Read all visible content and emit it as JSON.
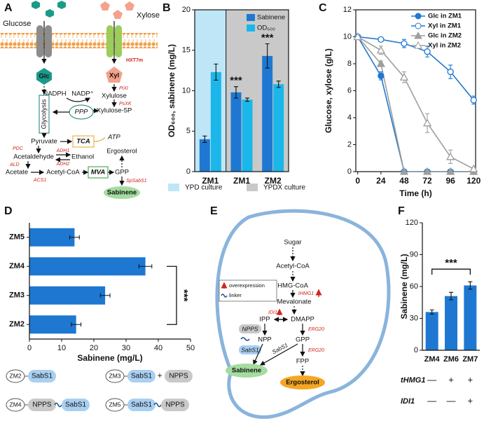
{
  "panel_labels": [
    "A",
    "B",
    "C",
    "D",
    "E",
    "F"
  ],
  "chart_data": [
    {
      "type": "bar",
      "y_label": "OD₆₀₀, sabinene (mg/L)",
      "categories": [
        "ZM1",
        "ZM1",
        "ZM2"
      ],
      "series": [
        {
          "name": "Sabinene",
          "color": "#1e78d2",
          "values": [
            4.0,
            9.8,
            14.3
          ],
          "errors": [
            0.4,
            0.7,
            1.5
          ]
        },
        {
          "name": "OD₆₀₀",
          "color": "#1bb6ea",
          "values": [
            12.3,
            8.9,
            10.8
          ],
          "errors": [
            1.0,
            0.2,
            0.4
          ]
        }
      ],
      "ylim": [
        0,
        20
      ],
      "yticks": [
        0,
        5,
        10,
        15,
        20
      ],
      "annotations": [
        {
          "text": "***",
          "category": 1
        },
        {
          "text": "***",
          "category": 2
        }
      ],
      "shading": [
        {
          "name": "YPD culture",
          "color": "#bfe6f7",
          "categories": [
            0
          ]
        },
        {
          "name": "YPDX culture",
          "color": "#c9c9c9",
          "categories": [
            1,
            2
          ]
        }
      ],
      "legend": "upper right"
    },
    {
      "type": "line",
      "x_label": "Time (h)",
      "y_label": "Glucose, xylose (g/L)",
      "x": [
        0,
        24,
        48,
        72,
        96,
        120
      ],
      "series": [
        {
          "name": "Glc in ZM1",
          "color": "#1e78d2",
          "marker": "circle",
          "filled": true,
          "values": [
            10,
            7.1,
            0,
            0,
            0,
            0
          ],
          "errors": [
            0,
            0.3,
            0,
            0,
            0,
            0
          ]
        },
        {
          "name": "Xyl in ZM1",
          "color": "#1e78d2",
          "marker": "circle",
          "filled": false,
          "values": [
            10,
            9.8,
            9.5,
            8.9,
            7.4,
            5.3
          ],
          "errors": [
            0,
            0.15,
            0.3,
            0.4,
            0.5,
            0.3
          ]
        },
        {
          "name": "Glc in ZM2",
          "color": "#9e9e9e",
          "marker": "triangle",
          "filled": true,
          "values": [
            10,
            8.0,
            0,
            0,
            0,
            0
          ],
          "errors": [
            0,
            0.2,
            0,
            0,
            0,
            0
          ]
        },
        {
          "name": "Xyl in ZM2",
          "color": "#9e9e9e",
          "marker": "triangle",
          "filled": false,
          "values": [
            10,
            9.0,
            7.0,
            3.6,
            1.1,
            0.2
          ],
          "errors": [
            0,
            0.3,
            0.4,
            0.7,
            0.5,
            0.1
          ]
        }
      ],
      "xlim": [
        -2,
        122
      ],
      "xticks": [
        0,
        24,
        48,
        72,
        96,
        120
      ],
      "ylim": [
        0,
        12
      ],
      "yticks": [
        0,
        2,
        4,
        6,
        8,
        10,
        12
      ],
      "legend": "upper right"
    },
    {
      "type": "hbar",
      "x_label": "Sabinene (mg/L)",
      "categories": [
        "ZM5",
        "ZM4",
        "ZM3",
        "ZM2"
      ],
      "values": [
        14.0,
        36.0,
        23.5,
        14.5
      ],
      "errors": [
        1.5,
        2.0,
        1.5,
        1.5
      ],
      "color": "#1e78d2",
      "xlim": [
        0,
        50
      ],
      "xticks": [
        0,
        10,
        20,
        30,
        40,
        50
      ],
      "annotations": [
        {
          "text": "***",
          "between": [
            1,
            3
          ]
        }
      ]
    },
    {
      "type": "bar",
      "y_label": "Sabinene (mg/L)",
      "categories": [
        "ZM4",
        "ZM6",
        "ZM7"
      ],
      "values": [
        36,
        51,
        61
      ],
      "errors": [
        2,
        3.5,
        3.5
      ],
      "color": "#1e78d2",
      "ylim": [
        0,
        120
      ],
      "yticks": [
        0,
        30,
        60,
        90,
        120
      ],
      "annotations": [
        {
          "text": "***",
          "between": [
            0,
            2
          ]
        }
      ],
      "genotype_table": [
        {
          "gene": "tHMG1",
          "marks": [
            "—",
            "+",
            "+"
          ]
        },
        {
          "gene": "IDI1",
          "marks": [
            "—",
            "—",
            "+"
          ]
        }
      ]
    }
  ],
  "panel_d_constructs": [
    {
      "strain": "ZM2",
      "parts": [
        {
          "name": "SabS1",
          "color": "#a9cff1"
        }
      ]
    },
    {
      "strain": "ZM3",
      "parts": [
        {
          "name": "SabS1",
          "color": "#a9cff1"
        },
        {
          "name": "NPPS",
          "color": "#c9c9c9"
        }
      ],
      "joiner": "+"
    },
    {
      "strain": "ZM4",
      "parts": [
        {
          "name": "NPPS",
          "color": "#c9c9c9"
        },
        {
          "name": "SabS1",
          "color": "#a9cff1"
        }
      ],
      "linker": true
    },
    {
      "strain": "ZM5",
      "parts": [
        {
          "name": "SabS1",
          "color": "#a9cff1"
        },
        {
          "name": "NPPS",
          "color": "#c9c9c9"
        }
      ],
      "linker": true
    }
  ],
  "panel_a": {
    "glucose": "Glucose",
    "xylose": "Xylose",
    "transporter": "HXT7m",
    "glc": "Glc",
    "xyl": "Xyl",
    "xi": "PiXI",
    "xylulose": "Xylulose",
    "xk": "PsXK",
    "xylulose_5p": "Xylulose-5P",
    "nadph": "NADPH",
    "nadp": "NADP⁺",
    "ppp": "PPP",
    "glycolysis": "Glycolysis",
    "pyruvate": "Pyruvate",
    "tca": "TCA",
    "atp": "ATP",
    "pdc": "PDC",
    "adh1": "ADH1",
    "acetaldehyde": "Acetaldehyde",
    "ethanol": "Ethanol",
    "adh2": "ADH2",
    "ald": "ALD",
    "acetate": "Acetate",
    "acetyl_coa": "Acetyl-CoA",
    "mva": "MVA",
    "gpp": "GPP",
    "ergosterol": "Ergosterol",
    "acs1": "ACS1",
    "sabs1": "SpSabS1",
    "sabinene": "Sabinene"
  },
  "panel_e": {
    "sugar": "Sugar",
    "acetyl_coa": "Acetyl-CoA",
    "hmg_coa": "HMG-CoA",
    "thmg1": "tHMG1",
    "mevalonate": "Mevalonate",
    "idi1": "IDI1",
    "ipp": "IPP",
    "dmapp": "DMAPP",
    "erg20_a": "ERG20",
    "npps": "NPPS",
    "npp": "NPP",
    "gpp": "GPP",
    "erg20_b": "ERG20",
    "sabs1_box": "SabS1",
    "sabs1": "SabS1",
    "fpp": "FPP",
    "sabinene": "Sabinene",
    "ergosterol": "Ergosterol",
    "legend_overexpression": "overexpression",
    "legend_linker": "linker"
  }
}
